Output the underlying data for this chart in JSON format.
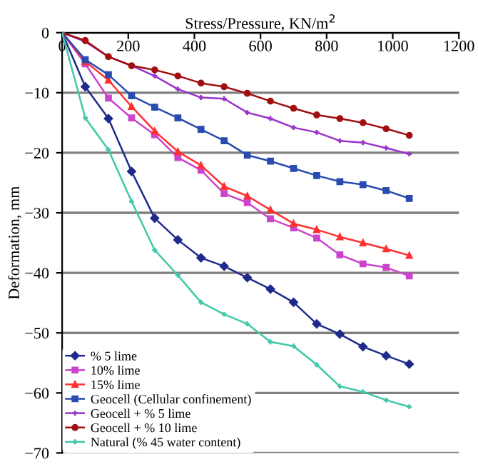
{
  "chart_data": {
    "type": "line",
    "xlabel": "Stress/Pressure, KN/m$^{2}$",
    "ylabel": "Deformation, mm",
    "x": [
      0,
      70,
      140,
      210,
      280,
      350,
      420,
      490,
      560,
      630,
      700,
      770,
      840,
      910,
      980,
      1050
    ],
    "xlim": [
      0,
      1200
    ],
    "xticks": [
      0,
      200,
      400,
      600,
      800,
      1000,
      1200
    ],
    "ylim": [
      -70,
      0
    ],
    "yticks": [
      {
        "value": 0,
        "label": "0"
      },
      {
        "value": -10,
        "label": "−10"
      },
      {
        "value": -20,
        "label": "−20"
      },
      {
        "value": -30,
        "label": "−30"
      },
      {
        "value": -40,
        "label": "−40"
      },
      {
        "value": -50,
        "label": "−50"
      },
      {
        "value": -60,
        "label": "−60"
      },
      {
        "value": -70,
        "label": "−70"
      }
    ],
    "grid": "y",
    "legend": "bottom left",
    "series": [
      {
        "name": "% 5 lime",
        "color": "#1f2a8c",
        "marker": "diamond",
        "values": [
          0,
          -9,
          -14.3,
          -23.1,
          -30.9,
          -34.5,
          -37.5,
          -38.9,
          -40.8,
          -42.7,
          -44.9,
          -48.5,
          -50.2,
          -52.3,
          -53.8,
          -55.2
        ]
      },
      {
        "name": "10% lime",
        "color": "#cc44cc",
        "marker": "square",
        "values": [
          0,
          -5.2,
          -10.9,
          -14.2,
          -17,
          -20.8,
          -22.9,
          -26.8,
          -28.3,
          -31,
          -32.5,
          -34.2,
          -37,
          -38.5,
          -39.1,
          -40.5
        ]
      },
      {
        "name": "15% lime",
        "color": "#ff3030",
        "marker": "triangle",
        "values": [
          0,
          -4.8,
          -7.9,
          -12.3,
          -16.4,
          -19.8,
          -22.1,
          -25.6,
          -27.2,
          -29.5,
          -31.8,
          -32.8,
          -34,
          -35,
          -36,
          -37.1
        ]
      },
      {
        "name": "Geocell (Cellular confinement)",
        "color": "#2a4bb0",
        "marker": "square",
        "values": [
          0,
          -4.5,
          -7,
          -10.5,
          -12.4,
          -14.2,
          -16.1,
          -18,
          -20.4,
          -21.4,
          -22.6,
          -23.8,
          -24.8,
          -25.3,
          -26.3,
          -27.6
        ]
      },
      {
        "name": "Geocell + % 5 lime",
        "color": "#9933cc",
        "marker": "cross",
        "values": [
          0,
          -1.5,
          -4,
          -5.5,
          -7.2,
          -9.4,
          -10.8,
          -11,
          -13.3,
          -14.3,
          -15.8,
          -16.6,
          -18,
          -18.3,
          -19.2,
          -20.2
        ]
      },
      {
        "name": "Geocell + % 10 lime",
        "color": "#a01010",
        "marker": "circle",
        "values": [
          0,
          -1.3,
          -4,
          -5.5,
          -6.2,
          -7.2,
          -8.4,
          -9,
          -10.1,
          -11.4,
          -12.6,
          -13.7,
          -14.3,
          -15,
          -16,
          -17.1
        ]
      },
      {
        "name": "Natural (% 45 water content)",
        "color": "#40c8a8",
        "marker": "cross",
        "values": [
          0,
          -14.2,
          -19.5,
          -28.1,
          -36.2,
          -40.4,
          -44.9,
          -46.9,
          -48.5,
          -51.5,
          -52.2,
          -55.3,
          -58.9,
          -59.8,
          -61.2,
          -62.3
        ]
      }
    ]
  }
}
